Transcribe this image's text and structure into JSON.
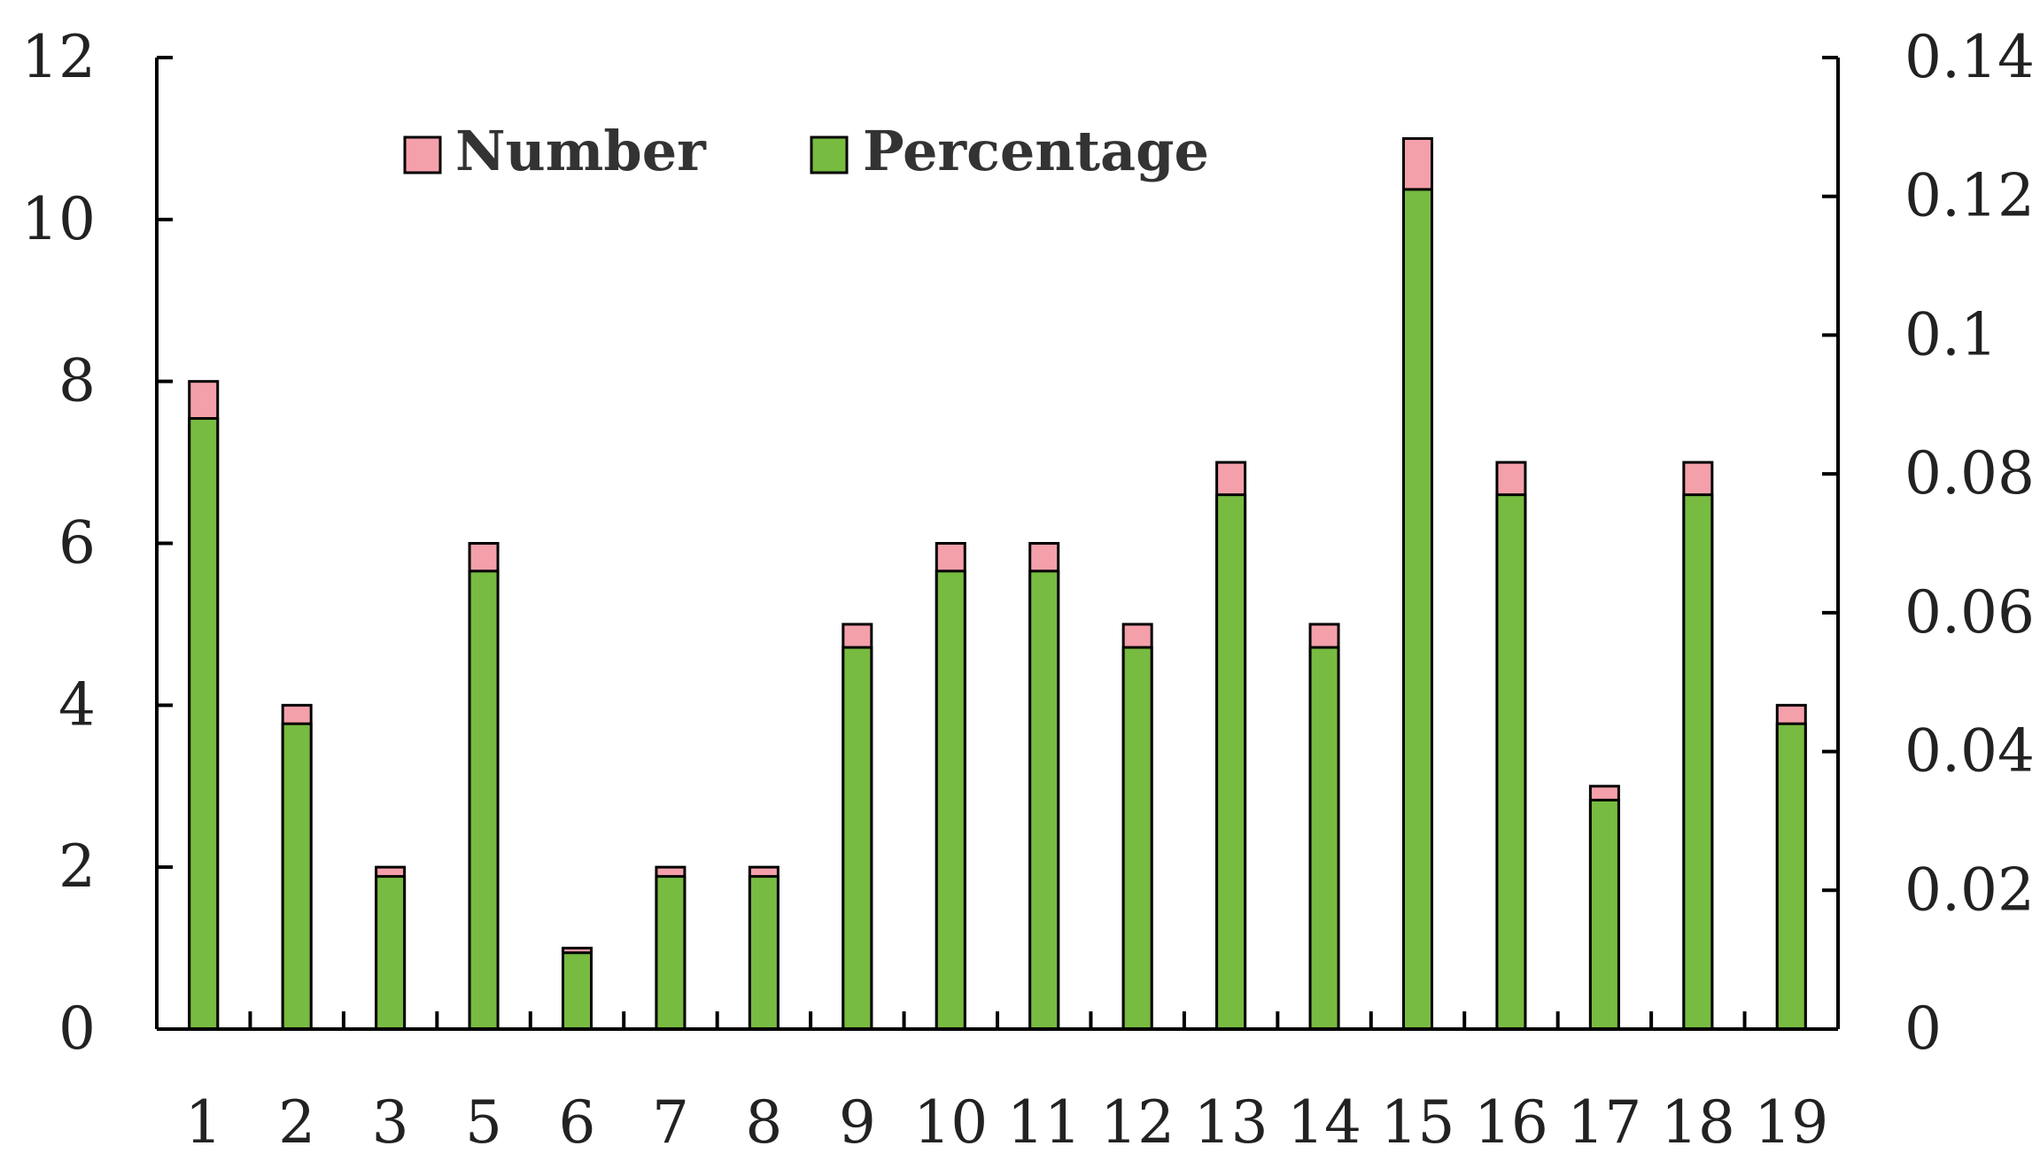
{
  "chart_data": {
    "type": "bar",
    "stacked": true,
    "categories": [
      "1",
      "2",
      "3",
      "5",
      "6",
      "7",
      "8",
      "9",
      "10",
      "11",
      "12",
      "13",
      "14",
      "15",
      "16",
      "17",
      "18",
      "19"
    ],
    "series": [
      {
        "name": "Number",
        "axis": "left",
        "color": "#f4a0aa",
        "values": [
          8,
          4,
          2,
          6,
          1,
          2,
          2,
          5,
          6,
          6,
          5,
          7,
          5,
          11,
          7,
          3,
          7,
          4
        ]
      },
      {
        "name": "Percentage",
        "axis": "right",
        "color": "#77bb41",
        "values": [
          0.088,
          0.044,
          0.022,
          0.066,
          0.011,
          0.022,
          0.022,
          0.055,
          0.066,
          0.066,
          0.055,
          0.077,
          0.055,
          0.121,
          0.077,
          0.033,
          0.077,
          0.044
        ]
      }
    ],
    "y_left": {
      "ylim": [
        0,
        12
      ],
      "ticks": [
        "0",
        "2",
        "4",
        "6",
        "8",
        "10",
        "12"
      ]
    },
    "y_right": {
      "ylim": [
        0,
        0.14
      ],
      "ticks": [
        "0",
        "0.02",
        "0.04",
        "0.06",
        "0.08",
        "0.1",
        "0.12",
        "0.14"
      ]
    },
    "title": "",
    "xlabel": "",
    "ylabel": "",
    "legend": {
      "placement": "top-left",
      "orientation": "horizontal"
    },
    "grid": false
  }
}
